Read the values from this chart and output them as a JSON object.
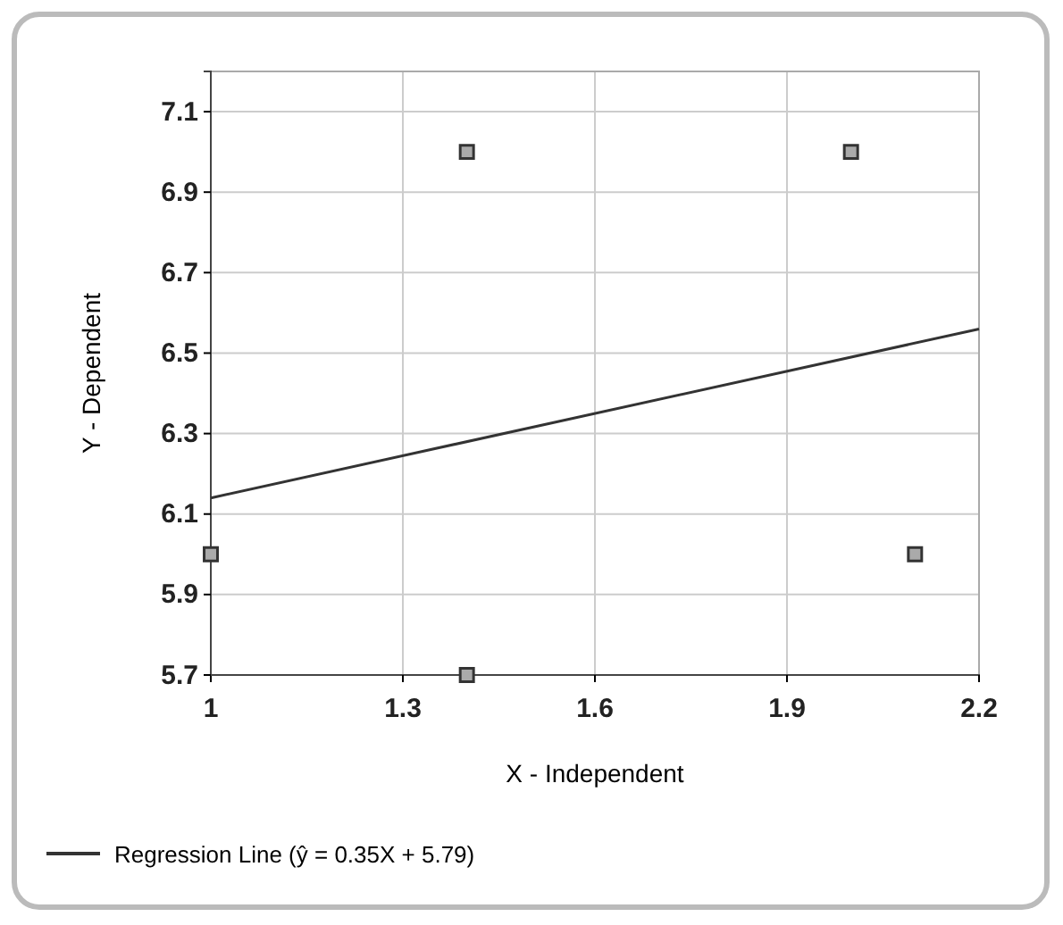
{
  "chart_data": {
    "type": "scatter",
    "xlabel": "X - Independent",
    "ylabel": "Y - Dependent",
    "xlim": [
      1,
      2.2
    ],
    "xticks": [
      1,
      1.3,
      1.6,
      1.9,
      2.2
    ],
    "ylim": [
      5.7,
      7.2
    ],
    "yticks": [
      5.7,
      5.9,
      6.1,
      6.3,
      6.5,
      6.7,
      6.9,
      7.1
    ],
    "grid": true,
    "legend": "bottom",
    "marker": "square",
    "series": [
      {
        "color": "#333333",
        "x": [
          1,
          1.4,
          1.4,
          2.0,
          2.1
        ],
        "values": [
          6.0,
          7.0,
          5.7,
          7.0,
          6.0
        ]
      },
      {
        "type": "line",
        "name": "Regression Line (ŷ = 0.35X + 5.79)",
        "color": "#333333",
        "marker": "none",
        "line_style": "solid",
        "x": [
          1,
          2.2
        ],
        "values": [
          6.14,
          6.56
        ]
      }
    ]
  }
}
